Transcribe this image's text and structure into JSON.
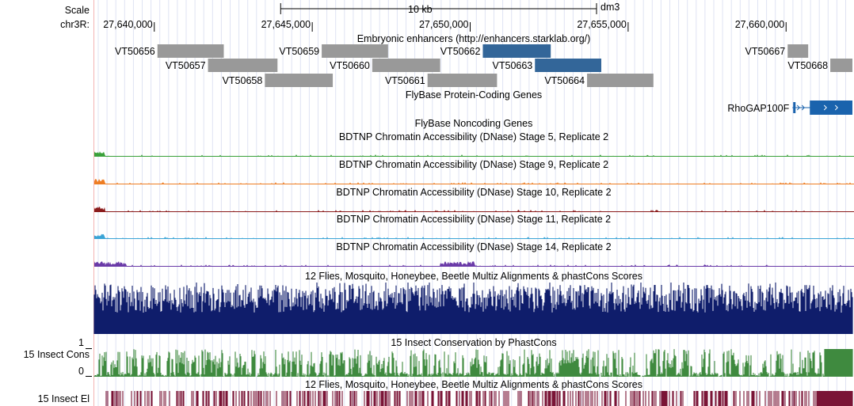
{
  "ruler": {
    "scale_label": "Scale",
    "chrom_label": "chr3R:",
    "scale_bar_label": "10 kb",
    "assembly": "dm3",
    "view_start": 27638100,
    "view_end": 27662100,
    "scale_bar": [
      27644000,
      27654000
    ],
    "ticks": [
      {
        "pos": 27640000,
        "label": "27,640,000"
      },
      {
        "pos": 27645000,
        "label": "27,645,000"
      },
      {
        "pos": 27650000,
        "label": "27,650,000"
      },
      {
        "pos": 27655000,
        "label": "27,655,000"
      },
      {
        "pos": 27660000,
        "label": "27,660,000"
      }
    ]
  },
  "enhancer_track": {
    "title": "Embryonic enhancers (http://enhancers.starklab.org/)",
    "gray_color": "#999999",
    "highlight_color": "#336699",
    "items": [
      {
        "name": "VT50656",
        "start": 27640100,
        "end": 27642200,
        "row": 0,
        "highlight": false
      },
      {
        "name": "VT50657",
        "start": 27641700,
        "end": 27643900,
        "row": 1,
        "highlight": false
      },
      {
        "name": "VT50658",
        "start": 27643500,
        "end": 27645650,
        "row": 2,
        "highlight": false
      },
      {
        "name": "VT50659",
        "start": 27645300,
        "end": 27647400,
        "row": 0,
        "highlight": false
      },
      {
        "name": "VT50660",
        "start": 27646900,
        "end": 27649050,
        "row": 1,
        "highlight": false
      },
      {
        "name": "VT50661",
        "start": 27648650,
        "end": 27650850,
        "row": 2,
        "highlight": false
      },
      {
        "name": "VT50662",
        "start": 27650400,
        "end": 27652550,
        "row": 0,
        "highlight": true
      },
      {
        "name": "VT50663",
        "start": 27652050,
        "end": 27654150,
        "row": 1,
        "highlight": true
      },
      {
        "name": "VT50664",
        "start": 27653700,
        "end": 27655800,
        "row": 2,
        "highlight": false
      },
      {
        "name": "VT50667",
        "start": 27660050,
        "end": 27660700,
        "row": 0,
        "highlight": false
      },
      {
        "name": "VT50668",
        "start": 27661400,
        "end": 27662100,
        "row": 1,
        "highlight": false
      }
    ]
  },
  "coding_genes": {
    "title": "FlyBase Protein-Coding Genes",
    "color": "#1a63ad",
    "gene": {
      "name": "RhoGAP100F",
      "start": 27660200,
      "end": 27662100
    }
  },
  "noncoding_genes": {
    "title": "FlyBase Noncoding Genes",
    "color": "#3a7cc6"
  },
  "dnase_tracks": [
    {
      "title": "BDTNP Chromatin Accessibility (DNase) Stage 5, Replicate 2",
      "color": "#3aa13a"
    },
    {
      "title": "BDTNP Chromatin Accessibility (DNase) Stage 9, Replicate 2",
      "color": "#ee7d23"
    },
    {
      "title": "BDTNP Chromatin Accessibility (DNase) Stage 10, Replicate 2",
      "color": "#8b1b1b"
    },
    {
      "title": "BDTNP Chromatin Accessibility (DNase) Stage 11, Replicate 2",
      "color": "#3aa4d6"
    },
    {
      "title": "BDTNP Chromatin Accessibility (DNase) Stage 14, Replicate 2",
      "color": "#6a3aa8"
    }
  ],
  "multiz": {
    "title": "12 Flies, Mosquito, Honeybee, Beetle Multiz Alignments & phastCons Scores",
    "color": "#0f1d6b"
  },
  "insect_cons": {
    "title": "15 Insect Conservation by PhastCons",
    "side_label": "15 Insect Cons",
    "y_max_label": "1",
    "y_min_label": "0",
    "color": "#3f8a3f"
  },
  "insect_el": {
    "title": "12 Flies, Mosquito, Honeybee, Beetle Multiz Alignments & phastCons Scores",
    "side_label": "15 Insect El",
    "color": "#7a1436"
  }
}
